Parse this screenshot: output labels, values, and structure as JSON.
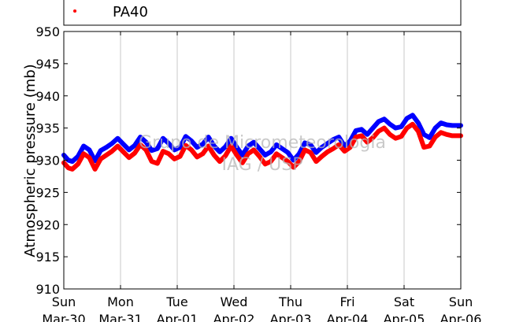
{
  "chart_data": {
    "type": "line",
    "ylabel": "Atmospheric pressure (mb)",
    "ylim": [
      910,
      950
    ],
    "yticks": [
      910,
      915,
      920,
      925,
      930,
      935,
      940,
      945,
      950
    ],
    "xlim": [
      0,
      7
    ],
    "grid": "vertical",
    "legend_position": "top",
    "xticks": [
      {
        "x": 0,
        "day": "Sun",
        "date": "Mar-30"
      },
      {
        "x": 1,
        "day": "Mon",
        "date": "Mar-31"
      },
      {
        "x": 2,
        "day": "Tue",
        "date": "Apr-01"
      },
      {
        "x": 3,
        "day": "Wed",
        "date": "Apr-02"
      },
      {
        "x": 4,
        "day": "Thu",
        "date": "Apr-03"
      },
      {
        "x": 5,
        "day": "Fri",
        "date": "Apr-04"
      },
      {
        "x": 6,
        "day": "Sat",
        "date": "Apr-05"
      },
      {
        "x": 7,
        "day": "Sun",
        "date": "Apr-06"
      }
    ],
    "series": [
      {
        "name": "",
        "color": "#0000ff",
        "x": [
          0,
          0.08,
          0.15,
          0.25,
          0.35,
          0.45,
          0.55,
          0.65,
          0.75,
          0.85,
          0.95,
          1.05,
          1.15,
          1.25,
          1.35,
          1.45,
          1.55,
          1.65,
          1.75,
          1.85,
          1.95,
          2.05,
          2.15,
          2.25,
          2.35,
          2.45,
          2.55,
          2.65,
          2.75,
          2.85,
          2.95,
          3.05,
          3.15,
          3.25,
          3.35,
          3.45,
          3.55,
          3.65,
          3.75,
          3.85,
          3.95,
          4.05,
          4.15,
          4.25,
          4.35,
          4.45,
          4.55,
          4.65,
          4.75,
          4.85,
          4.95,
          5.05,
          5.15,
          5.25,
          5.35,
          5.45,
          5.55,
          5.65,
          5.75,
          5.85,
          5.95,
          6.05,
          6.15,
          6.25,
          6.35,
          6.45,
          6.55,
          6.65,
          6.75,
          6.85,
          6.95,
          7.0
        ],
        "y": [
          930.8,
          930.0,
          929.8,
          930.6,
          932.2,
          931.6,
          929.9,
          931.5,
          932.0,
          932.6,
          933.4,
          932.5,
          931.6,
          932.3,
          933.6,
          932.8,
          931.5,
          931.8,
          933.4,
          932.6,
          931.6,
          932.0,
          933.7,
          933.0,
          932.0,
          932.5,
          933.6,
          932.2,
          931.3,
          932.1,
          933.4,
          932.0,
          930.8,
          932.2,
          932.8,
          931.8,
          930.8,
          931.3,
          932.4,
          931.8,
          931.2,
          930.0,
          931.0,
          932.7,
          932.4,
          931.2,
          932.0,
          932.6,
          933.2,
          933.6,
          932.2,
          933.0,
          934.6,
          934.8,
          934.0,
          935.0,
          936.0,
          936.4,
          935.6,
          935.0,
          935.2,
          936.5,
          937.0,
          935.8,
          934.0,
          933.5,
          935.0,
          935.8,
          935.5,
          935.4,
          935.4,
          935.4
        ]
      },
      {
        "name": "PA40",
        "color": "#ff0000",
        "x": [
          0,
          0.08,
          0.15,
          0.25,
          0.35,
          0.45,
          0.55,
          0.65,
          0.75,
          0.85,
          0.95,
          1.05,
          1.15,
          1.25,
          1.35,
          1.45,
          1.55,
          1.65,
          1.75,
          1.85,
          1.95,
          2.05,
          2.15,
          2.25,
          2.35,
          2.45,
          2.55,
          2.65,
          2.75,
          2.85,
          2.95,
          3.05,
          3.15,
          3.25,
          3.35,
          3.45,
          3.55,
          3.65,
          3.75,
          3.85,
          3.95,
          4.05,
          4.15,
          4.25,
          4.35,
          4.45,
          4.55,
          4.65,
          4.75,
          4.85,
          4.95,
          5.05,
          5.15,
          5.25,
          5.35,
          5.45,
          5.55,
          5.65,
          5.75,
          5.85,
          5.95,
          6.05,
          6.15,
          6.25,
          6.35,
          6.45,
          6.55,
          6.65,
          6.75,
          6.85,
          6.95,
          7.0
        ],
        "y": [
          929.6,
          928.8,
          928.6,
          929.4,
          931.0,
          930.4,
          928.6,
          930.2,
          930.8,
          931.4,
          932.2,
          931.3,
          930.4,
          931.1,
          932.4,
          931.6,
          929.8,
          929.5,
          931.4,
          931.0,
          930.2,
          930.6,
          932.3,
          931.6,
          930.5,
          931.0,
          932.2,
          930.8,
          929.8,
          930.7,
          932.2,
          930.8,
          929.6,
          931.0,
          931.6,
          930.6,
          929.4,
          929.8,
          931.0,
          930.4,
          929.8,
          928.9,
          929.8,
          931.6,
          931.2,
          929.8,
          930.6,
          931.3,
          931.8,
          932.4,
          931.4,
          932.0,
          933.6,
          933.8,
          932.8,
          933.5,
          934.5,
          935.0,
          934.0,
          933.4,
          933.7,
          935.0,
          935.6,
          934.5,
          932.0,
          932.2,
          933.6,
          934.3,
          934.0,
          933.8,
          933.8,
          933.8
        ]
      }
    ],
    "watermark": [
      "Grupo de Micrometeorologia",
      "IAG / USP"
    ]
  }
}
